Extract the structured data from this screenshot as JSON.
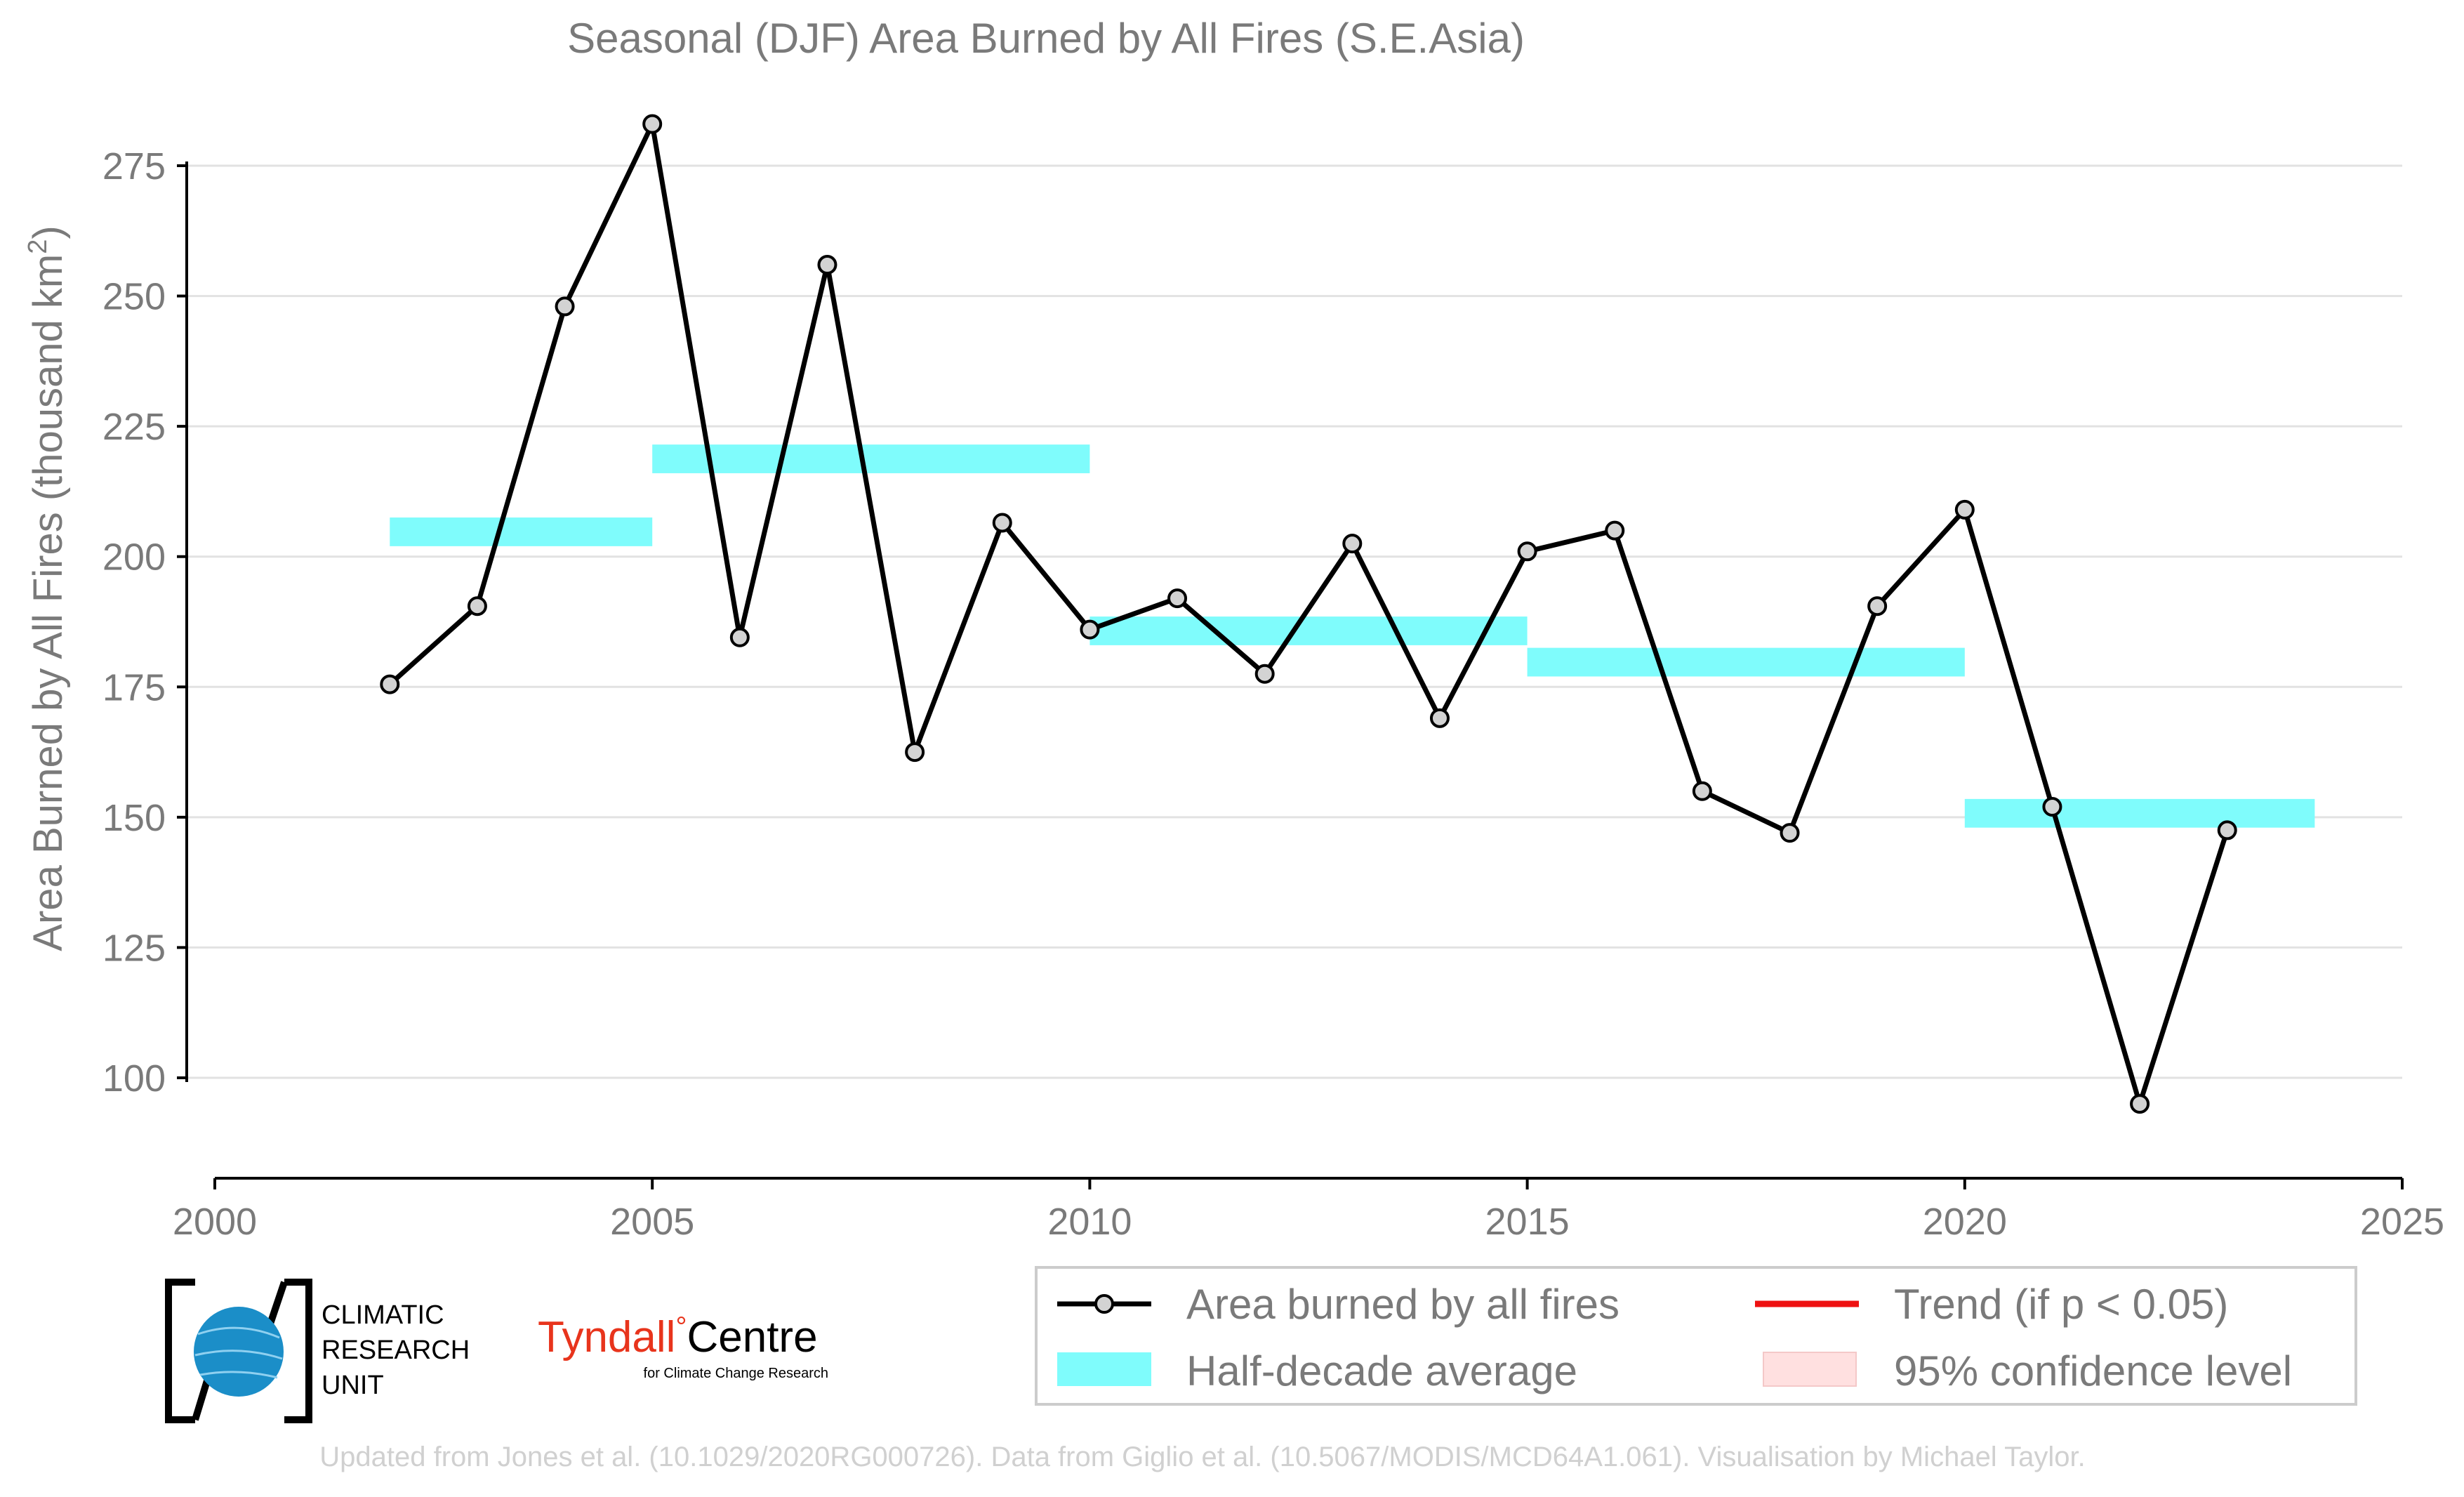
{
  "chart_data": {
    "type": "line",
    "title": "Seasonal (DJF) Area Burned by All Fires (S.E.Asia)",
    "ylabel_main": "Area Burned by All Fires (thousand km",
    "ylabel_sup": "2",
    "ylabel_close": ")",
    "xlabel": "",
    "xlim": [
      2000,
      2025
    ],
    "ylim": [
      80,
      290
    ],
    "x_ticks": [
      2000,
      2005,
      2010,
      2015,
      2020,
      2025
    ],
    "y_ticks": [
      100,
      125,
      150,
      175,
      200,
      225,
      250,
      275
    ],
    "grid": true,
    "series": [
      {
        "name": "Area burned by all fires",
        "color": "#000000",
        "x": [
          2002,
          2003,
          2004,
          2005,
          2006,
          2007,
          2008,
          2009,
          2010,
          2011,
          2012,
          2013,
          2014,
          2015,
          2016,
          2017,
          2018,
          2019,
          2020,
          2021,
          2022,
          2023
        ],
        "y": [
          175.5,
          190.5,
          248,
          283,
          184.5,
          256,
          162.5,
          206.5,
          186,
          192,
          177.5,
          202.5,
          169,
          201,
          205,
          155,
          147,
          190.5,
          209,
          152,
          95,
          147.5
        ]
      }
    ],
    "half_decade_average": {
      "name": "Half-decade average",
      "color": "#7ffcfc",
      "bands": [
        {
          "x0": 2002,
          "x1": 2005,
          "y0": 202,
          "y1": 207.5
        },
        {
          "x0": 2005,
          "x1": 2010,
          "y0": 216,
          "y1": 221.5
        },
        {
          "x0": 2010,
          "x1": 2015,
          "y0": 183,
          "y1": 188.5
        },
        {
          "x0": 2015,
          "x1": 2020,
          "y0": 177,
          "y1": 182.5
        },
        {
          "x0": 2020,
          "x1": 2024,
          "y0": 148,
          "y1": 153.5
        }
      ]
    },
    "legend": {
      "placement": "bottom-right",
      "entries": [
        {
          "label": "Area burned by all fires",
          "kind": "line-marker",
          "color": "#000000"
        },
        {
          "label": "Trend (if p < 0.05)",
          "kind": "line",
          "color": "#ee1111"
        },
        {
          "label": "Half-decade average",
          "kind": "patch",
          "color": "#7ffcfc"
        },
        {
          "label": "95% confidence level",
          "kind": "patch",
          "color": "#ffe0e0"
        }
      ]
    }
  },
  "logos": {
    "cru": {
      "line1": "CLIMATIC",
      "line2": "RESEARCH",
      "line3": "UNIT"
    },
    "tyndall": {
      "word1": "Tyndall",
      "degree": "°",
      "word2": "Centre",
      "sub": "for Climate Change Research"
    }
  },
  "footer": {
    "credit": "Updated from Jones et al. (10.1029/2020RG000726). Data from Giglio et al. (10.5067/MODIS/MCD64A1.061). Visualisation by Michael Taylor."
  },
  "colors": {
    "text_gray": "#7a7a7a",
    "cyan": "#7ffcfc",
    "trend_red": "#ee1111",
    "ci_pink": "#ffe0e0",
    "tyndall_red": "#e8341c",
    "cru_blue": "#1b8ec8"
  }
}
